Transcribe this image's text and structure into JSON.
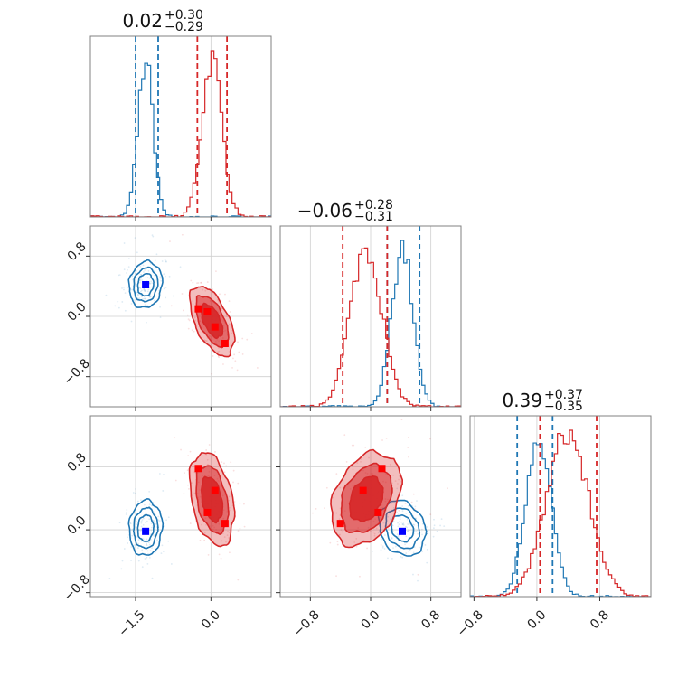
{
  "colors": {
    "blue": "#1f77b4",
    "red": "#d62728",
    "blue_marker": "#0000ff",
    "red_marker": "#ff0000",
    "frame": "#808080",
    "grid": "#cfcfcf"
  },
  "chart_data": {
    "type": "corner",
    "parameter_ranges": [
      [
        -2.4,
        1.2
      ],
      [
        -1.2,
        1.2
      ],
      [
        -0.85,
        1.45
      ]
    ],
    "ticks": {
      "p0": {
        "values": [
          -1.5,
          0.0
        ],
        "labels": [
          "−1.5",
          "0.0"
        ]
      },
      "p1": {
        "values": [
          -0.8,
          0.0,
          0.8
        ],
        "labels": [
          "−0.8",
          "0.0",
          "0.8"
        ]
      },
      "p2": {
        "values": [
          -0.8,
          0.0,
          0.8
        ],
        "labels": [
          "−0.8",
          "0.0",
          "0.8"
        ]
      }
    },
    "titles": [
      {
        "main": "0.02",
        "plus": "+0.30",
        "minus": "−0.29"
      },
      {
        "main": "−0.06",
        "plus": "+0.28",
        "minus": "−0.31"
      },
      {
        "main": "0.39",
        "plus": "+0.37",
        "minus": "−0.35"
      }
    ],
    "series": [
      {
        "color": "blue",
        "means": [
          -1.3,
          0.42,
          0.02
        ],
        "sds": [
          0.15,
          0.14,
          0.16
        ],
        "quantiles": [
          [
            -1.5,
            -1.05
          ],
          [
            0.22,
            0.65
          ],
          [
            -0.25,
            0.2
          ]
        ],
        "markers": {
          "p1_vs_p0": [
            [
              -1.3,
              0.42
            ]
          ],
          "p2_vs_p0": [
            [
              -1.3,
              -0.02
            ]
          ],
          "p2_vs_p1": [
            [
              0.42,
              -0.02
            ]
          ]
        }
      },
      {
        "color": "red",
        "means": [
          0.02,
          -0.06,
          0.39
        ],
        "sds": [
          0.2,
          0.21,
          0.27
        ],
        "quantiles": [
          [
            -0.27,
            0.32
          ],
          [
            -0.37,
            0.22
          ],
          [
            0.04,
            0.76
          ]
        ],
        "markers": {
          "p1_vs_p0": [
            [
              -0.25,
              0.1
            ],
            [
              -0.07,
              0.06
            ],
            [
              0.08,
              -0.14
            ],
            [
              0.28,
              -0.36
            ]
          ],
          "p2_vs_p0": [
            [
              -0.25,
              0.78
            ],
            [
              0.08,
              0.5
            ],
            [
              -0.07,
              0.22
            ],
            [
              0.28,
              0.08
            ]
          ],
          "p2_vs_p1": [
            [
              -0.1,
              0.5
            ],
            [
              0.15,
              0.78
            ],
            [
              0.1,
              0.22
            ],
            [
              -0.4,
              0.08
            ]
          ]
        }
      }
    ],
    "grid": true
  }
}
